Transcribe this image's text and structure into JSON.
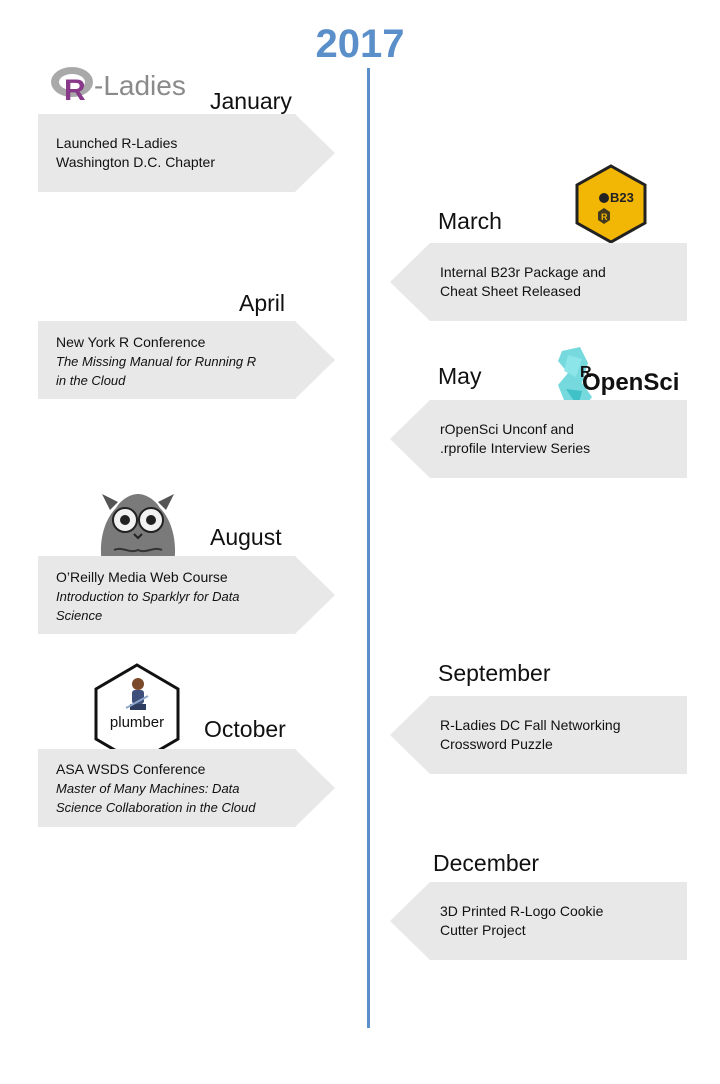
{
  "year": "2017",
  "logos": {
    "rladies_text": "-Ladies",
    "b23_text": "B23",
    "ropensci_text": "OpenSci",
    "plumber_text": "plumber"
  },
  "events": [
    {
      "id": "january",
      "month": "January",
      "lines": [
        "Launched R-Ladies",
        "Washington D.C. Chapter"
      ],
      "italic": []
    },
    {
      "id": "march",
      "month": "March",
      "lines": [
        "Internal B23r Package and",
        "Cheat Sheet Released"
      ],
      "italic": []
    },
    {
      "id": "april",
      "month": "April",
      "lines": [
        "New York R Conference"
      ],
      "italic": [
        "The Missing Manual for Running R",
        "in the Cloud"
      ]
    },
    {
      "id": "may",
      "month": "May",
      "lines": [
        "rOpenSci Unconf and",
        ".rprofile Interview Series"
      ],
      "italic": []
    },
    {
      "id": "august",
      "month": "August",
      "lines": [
        "O’Reilly Media Web Course"
      ],
      "italic": [
        "Introduction to Sparklyr for Data",
        "Science"
      ]
    },
    {
      "id": "september",
      "month": "September",
      "lines": [
        "R-Ladies DC Fall Networking",
        "Crossword Puzzle"
      ],
      "italic": []
    },
    {
      "id": "october",
      "month": "October",
      "lines": [
        "ASA WSDS Conference"
      ],
      "italic": [
        "Master of Many Machines: Data",
        "Science Collaboration in the Cloud"
      ]
    },
    {
      "id": "december",
      "month": "December",
      "lines": [
        "3D Printed R-Logo Cookie",
        "Cutter Project"
      ],
      "italic": []
    }
  ],
  "colors": {
    "axis": "#5b8fc9",
    "year": "#5b8fc9",
    "box": "#e8e8e8",
    "rladies_purple": "#88398a",
    "b23_yellow": "#f2b705"
  }
}
